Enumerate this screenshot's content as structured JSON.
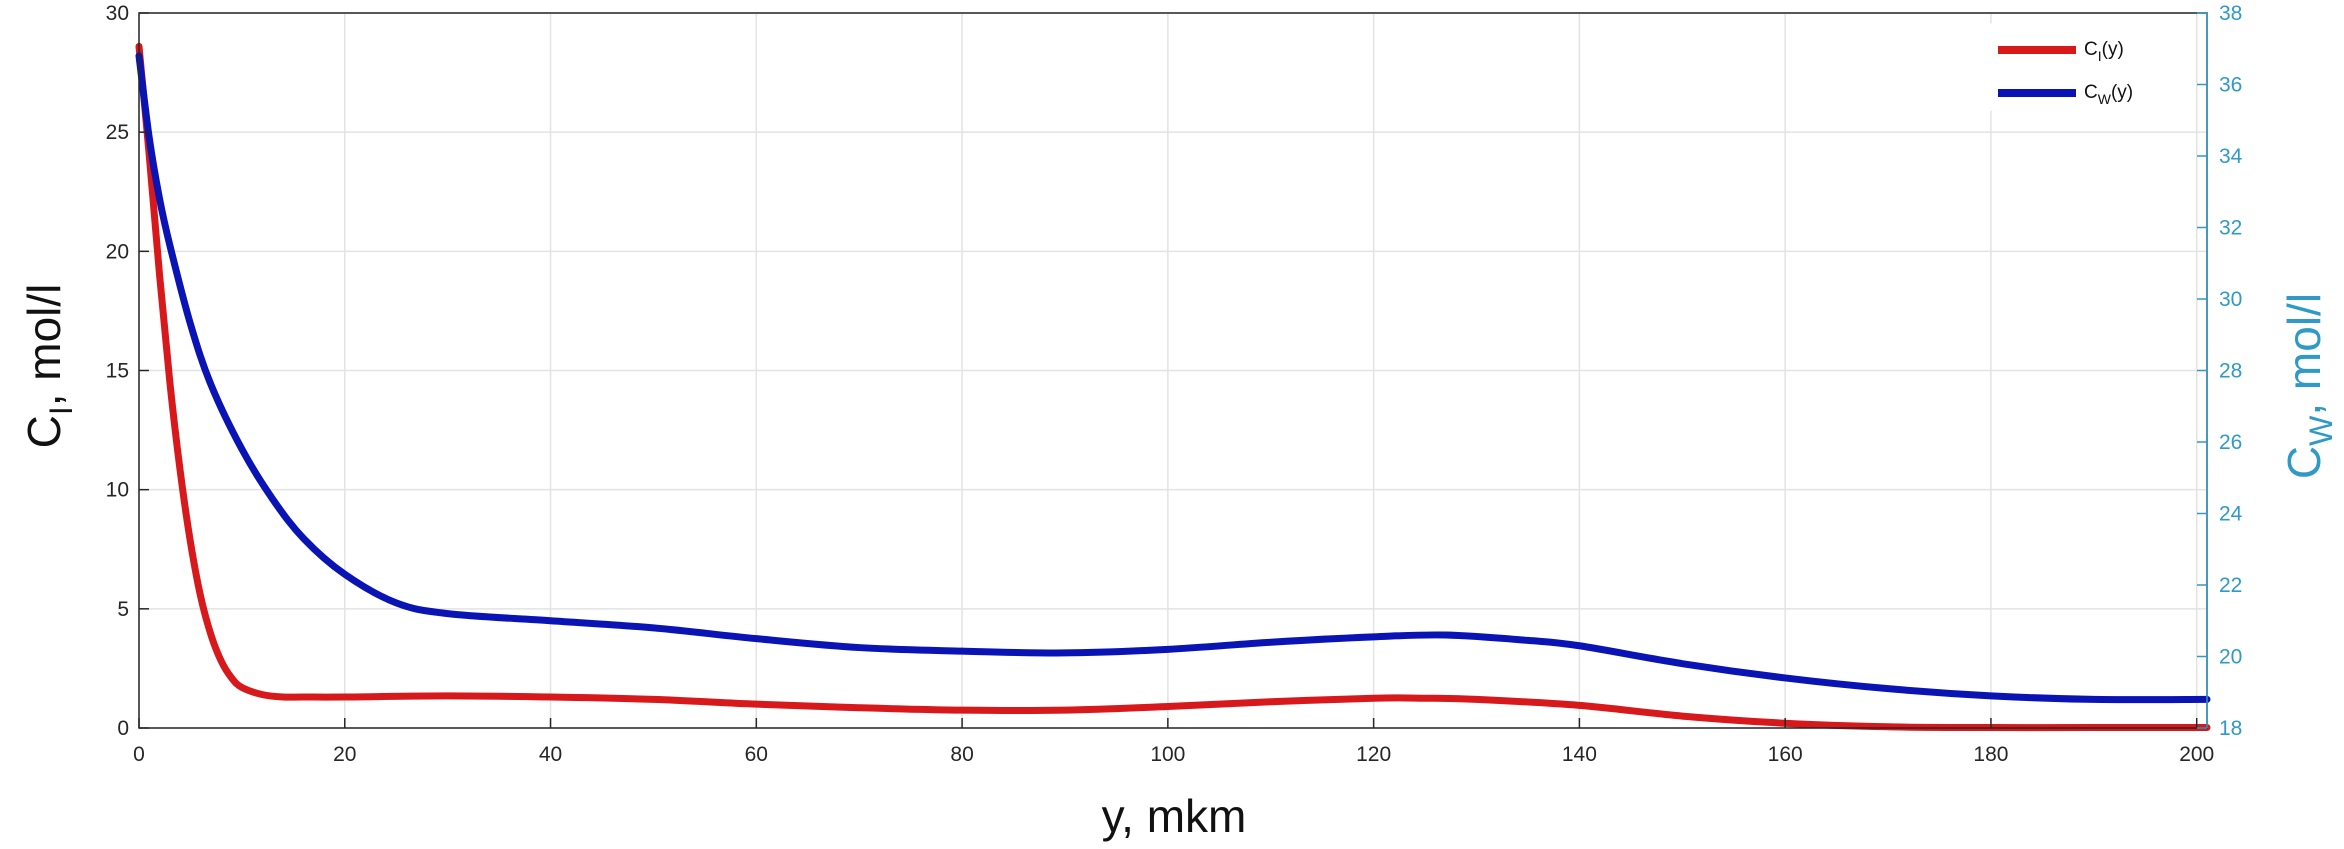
{
  "chart_data": {
    "type": "line",
    "title": "",
    "xlabel": "y, mkm",
    "ylabel_left": {
      "main": "C",
      "sub": "I",
      "rest": ", mol/l"
    },
    "ylabel_right": {
      "main": "C",
      "sub": "W",
      "rest": ", mol/l"
    },
    "xlim": [
      0,
      201
    ],
    "ylim_left": [
      0,
      30
    ],
    "ylim_right": [
      18,
      38
    ],
    "x_ticks": [
      "0",
      "20",
      "40",
      "60",
      "80",
      "100",
      "120",
      "140",
      "160",
      "180",
      "200"
    ],
    "y_left_ticks": [
      "0",
      "5",
      "10",
      "15",
      "20",
      "25",
      "30"
    ],
    "y_right_ticks": [
      "18",
      "20",
      "22",
      "24",
      "26",
      "28",
      "30",
      "32",
      "34",
      "36",
      "38"
    ],
    "grid": true,
    "legend_position": "top-right",
    "series": [
      {
        "name": "C_I(y)",
        "legend": {
          "main": "C",
          "sub": "I",
          "rest": "(y)"
        },
        "axis": "left",
        "color": "#d7191c",
        "x": [
          0,
          1,
          2,
          3,
          4,
          5,
          6,
          7,
          8,
          9,
          10,
          12,
          14,
          16,
          20,
          30,
          40,
          50,
          60,
          70,
          80,
          90,
          100,
          110,
          120,
          125,
          130,
          140,
          150,
          160,
          170,
          180,
          190,
          201
        ],
        "y": [
          28.6,
          24.0,
          19.0,
          14.5,
          10.8,
          7.8,
          5.5,
          3.9,
          2.8,
          2.1,
          1.7,
          1.4,
          1.3,
          1.3,
          1.3,
          1.35,
          1.3,
          1.2,
          1.0,
          0.85,
          0.75,
          0.75,
          0.9,
          1.1,
          1.25,
          1.25,
          1.2,
          0.95,
          0.5,
          0.2,
          0.05,
          0.02,
          0.02,
          0.02
        ]
      },
      {
        "name": "C_W(y)",
        "legend": {
          "main": "C",
          "sub": "W",
          "rest": "(y)"
        },
        "axis": "right",
        "color": "#0a14b4",
        "x": [
          0,
          1,
          2,
          3,
          5,
          7,
          10,
          13,
          16,
          20,
          25,
          30,
          40,
          50,
          60,
          70,
          80,
          90,
          100,
          110,
          120,
          127,
          135,
          140,
          150,
          160,
          170,
          180,
          190,
          201
        ],
        "y": [
          36.8,
          34.5,
          32.8,
          31.5,
          29.3,
          27.6,
          25.8,
          24.4,
          23.3,
          22.3,
          21.5,
          21.2,
          21.0,
          20.8,
          20.5,
          20.25,
          20.15,
          20.1,
          20.2,
          20.4,
          20.55,
          20.6,
          20.45,
          20.3,
          19.8,
          19.4,
          19.1,
          18.9,
          18.8,
          18.8
        ]
      }
    ]
  }
}
